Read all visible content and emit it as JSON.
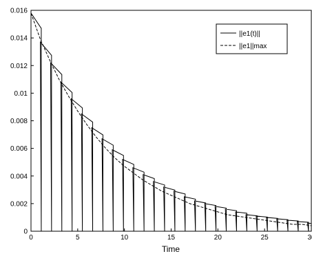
{
  "chart_data": {
    "type": "line",
    "xlabel": "Time",
    "ylabel": "",
    "title": "",
    "xlim": [
      0,
      30
    ],
    "ylim": [
      0,
      0.016
    ],
    "xticks": [
      "0",
      "5",
      "10",
      "15",
      "20",
      "25",
      "30"
    ],
    "yticks": [
      "0",
      "0.002",
      "0.004",
      "0.006",
      "0.008",
      "0.01",
      "0.012",
      "0.014",
      "0.016"
    ],
    "grid": false,
    "legend_position": "top-right",
    "legend": [
      "||e1(t)||",
      "||e1||max"
    ],
    "series": [
      {
        "name": "||e1(t)||",
        "style": "solid",
        "reset_times": [
          0,
          1.1,
          2.2,
          3.3,
          4.4,
          5.5,
          6.6,
          7.7,
          8.8,
          9.9,
          11.0,
          12.1,
          13.2,
          14.3,
          15.4,
          16.5,
          17.6,
          18.7,
          19.8,
          20.9,
          22.0,
          23.1,
          24.2,
          25.3,
          26.4,
          27.5,
          28.6,
          29.7
        ],
        "peak_times": [
          0,
          1.0,
          2.1,
          3.2,
          4.3,
          5.4,
          6.5,
          7.6,
          8.7,
          9.8,
          10.9,
          12.0,
          13.1,
          14.2,
          15.3,
          16.4,
          17.5,
          18.6,
          19.7,
          20.8,
          21.9,
          23.0,
          24.1,
          25.2,
          26.3,
          27.4,
          28.5,
          29.6
        ],
        "peak_values": [
          0.0158,
          0.0137,
          0.0122,
          0.0108,
          0.0096,
          0.0085,
          0.0075,
          0.0067,
          0.0059,
          0.0052,
          0.0046,
          0.0041,
          0.0036,
          0.0032,
          0.0029,
          0.0025,
          0.0022,
          0.002,
          0.0018,
          0.0016,
          0.0014,
          0.0012,
          0.0011,
          0.001,
          0.0009,
          0.0008,
          0.0007,
          0.0006
        ]
      },
      {
        "name": "||e1||max",
        "style": "dashed",
        "x": [
          0,
          1,
          2,
          3,
          4,
          5,
          6,
          7,
          8,
          9,
          10,
          11,
          12,
          13,
          14,
          15,
          16,
          17,
          18,
          19,
          20,
          21,
          22,
          23,
          24,
          25,
          26,
          27,
          28,
          29,
          30
        ],
        "values": [
          0.0158,
          0.0139,
          0.0124,
          0.011,
          0.0098,
          0.0087,
          0.0077,
          0.0068,
          0.006,
          0.0053,
          0.0047,
          0.0042,
          0.0037,
          0.0033,
          0.0029,
          0.0026,
          0.0023,
          0.002,
          0.0018,
          0.0016,
          0.0014,
          0.0012,
          0.0011,
          0.001,
          0.0009,
          0.0008,
          0.0007,
          0.0006,
          0.0005,
          0.0005,
          0.0004
        ]
      }
    ]
  }
}
